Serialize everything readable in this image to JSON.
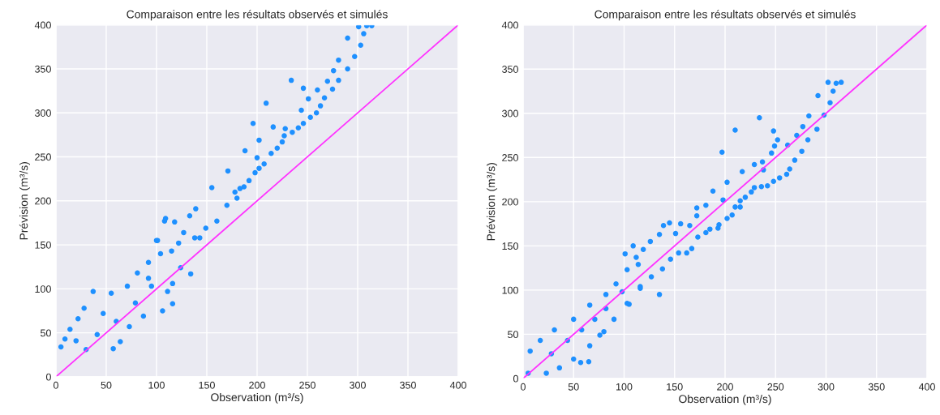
{
  "chart_data": [
    {
      "type": "scatter",
      "title": "Comparaison entre les résultats observés et simulés",
      "xlabel": "Observation (m³/s)",
      "ylabel": "Prévision (m³/s)",
      "xlim": [
        0,
        400
      ],
      "ylim": [
        0,
        400
      ],
      "xticks": [
        0,
        50,
        100,
        150,
        200,
        250,
        300,
        350,
        400
      ],
      "yticks": [
        0,
        50,
        100,
        150,
        200,
        250,
        300,
        350,
        400
      ],
      "grid": true,
      "series": [
        {
          "marker": "circle",
          "color": "#1e90ff",
          "x": [
            301,
            309,
            314,
            290,
            306,
            303,
            297,
            290,
            281,
            276,
            281,
            270,
            275,
            260,
            267,
            263,
            259,
            253,
            246,
            251,
            246,
            244,
            241,
            235,
            228,
            227,
            225,
            220,
            214,
            207,
            202,
            198,
            192,
            187,
            180,
            178,
            183,
            202,
            200,
            216,
            209,
            234,
            196,
            188,
            171,
            155,
            139,
            133,
            109,
            108,
            170,
            160,
            149,
            143,
            134,
            124,
            116,
            100,
            118,
            5,
            9,
            14,
            22,
            28,
            37,
            55,
            71,
            81,
            92,
            101,
            57,
            30,
            64,
            73,
            87,
            106,
            116,
            111,
            95,
            47,
            20,
            41,
            60,
            79,
            92,
            104,
            115,
            122,
            127,
            138
          ],
          "values": [
            398,
            399,
            399,
            385,
            390,
            377,
            364,
            350,
            360,
            348,
            337,
            336,
            327,
            326,
            317,
            308,
            300,
            295,
            288,
            316,
            328,
            303,
            283,
            278,
            282,
            274,
            267,
            260,
            254,
            242,
            237,
            232,
            223,
            216,
            203,
            210,
            214,
            269,
            249,
            284,
            311,
            337,
            288,
            257,
            234,
            215,
            191,
            183,
            180,
            177,
            195,
            177,
            169,
            158,
            117,
            124,
            106,
            155,
            176,
            34,
            43,
            54,
            66,
            78,
            97,
            95,
            103,
            118,
            130,
            155,
            32,
            31,
            40,
            57,
            69,
            75,
            83,
            97,
            103,
            72,
            41,
            48,
            63,
            84,
            112,
            140,
            143,
            152,
            164,
            158
          ]
        },
        {
          "type": "line",
          "color": "#ff33ff",
          "x": [
            0,
            400
          ],
          "values": [
            0,
            400
          ]
        }
      ]
    },
    {
      "type": "scatter",
      "title": "Comparaison entre les résultats observés et simulés",
      "xlabel": "Observation (m³/s)",
      "ylabel": "Prévision (m³/s)",
      "xlim": [
        0,
        400
      ],
      "ylim": [
        0,
        400
      ],
      "xticks": [
        0,
        50,
        100,
        150,
        200,
        250,
        300,
        350,
        400
      ],
      "yticks": [
        0,
        50,
        100,
        150,
        200,
        250,
        300,
        350,
        400
      ],
      "grid": true,
      "series": [
        {
          "marker": "circle",
          "color": "#1e90ff",
          "x": [
            302,
            310,
            315,
            307,
            292,
            304,
            298,
            291,
            283,
            277,
            271,
            282,
            276,
            269,
            264,
            261,
            254,
            248,
            242,
            236,
            229,
            226,
            220,
            215,
            215,
            210,
            207,
            202,
            194,
            193,
            185,
            181,
            173,
            167,
            162,
            154,
            146,
            138,
            127,
            116,
            234,
            248,
            252,
            262,
            249,
            246,
            237,
            229,
            238,
            217,
            210,
            197,
            202,
            188,
            198,
            181,
            172,
            172,
            165,
            156,
            145,
            139,
            151,
            135,
            126,
            109,
            101,
            112,
            119,
            135,
            105,
            80,
            65,
            57,
            5,
            7,
            17,
            31,
            50,
            66,
            82,
            92,
            103,
            114,
            50,
            36,
            23,
            66,
            76,
            90,
            103,
            116,
            28,
            44,
            58,
            71,
            82,
            98
          ],
          "values": [
            335,
            334,
            335,
            325,
            320,
            312,
            298,
            282,
            297,
            285,
            275,
            270,
            257,
            247,
            237,
            231,
            227,
            223,
            218,
            217,
            216,
            211,
            205,
            201,
            194,
            194,
            185,
            181,
            174,
            170,
            169,
            165,
            160,
            147,
            142,
            142,
            135,
            124,
            115,
            104,
            295,
            280,
            270,
            264,
            263,
            255,
            245,
            242,
            236,
            234,
            281,
            256,
            222,
            212,
            202,
            196,
            193,
            184,
            173,
            175,
            176,
            173,
            164,
            163,
            155,
            150,
            141,
            137,
            146,
            95,
            84,
            53,
            19,
            18,
            6,
            31,
            43,
            55,
            67,
            83,
            95,
            107,
            123,
            129,
            22,
            12,
            6,
            37,
            49,
            67,
            85,
            102,
            28,
            43,
            55,
            67,
            79,
            98
          ]
        },
        {
          "type": "line",
          "color": "#ff33ff",
          "x": [
            0,
            400
          ],
          "values": [
            0,
            400
          ]
        }
      ]
    }
  ]
}
